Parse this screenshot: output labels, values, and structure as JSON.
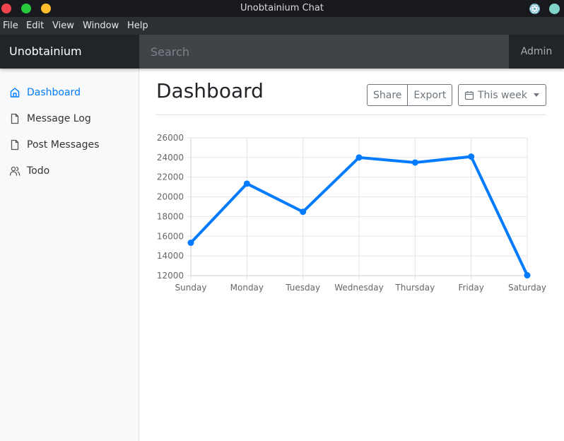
{
  "window": {
    "title": "Unobtainium Chat"
  },
  "menu": [
    "File",
    "Edit",
    "View",
    "Window",
    "Help"
  ],
  "navbar": {
    "brand": "Unobtainium",
    "search_placeholder": "Search",
    "user": "Admin"
  },
  "sidebar": {
    "items": [
      {
        "label": "Dashboard",
        "icon": "home-icon",
        "active": true
      },
      {
        "label": "Message Log",
        "icon": "file-icon",
        "active": false
      },
      {
        "label": "Post Messages",
        "icon": "file-icon",
        "active": false
      },
      {
        "label": "Todo",
        "icon": "users-icon",
        "active": false
      }
    ]
  },
  "main": {
    "title": "Dashboard",
    "share_label": "Share",
    "export_label": "Export",
    "period_label": "This week"
  },
  "colors": {
    "accent": "#007bff",
    "navbar": "#343a40"
  },
  "chart_data": {
    "type": "line",
    "categories": [
      "Sunday",
      "Monday",
      "Tuesday",
      "Wednesday",
      "Thursday",
      "Friday",
      "Saturday"
    ],
    "series": [
      {
        "values": [
          15339,
          21345,
          18483,
          24003,
          23489,
          24092,
          12034
        ]
      }
    ],
    "ylim": [
      12000,
      26000
    ],
    "yticks": [
      12000,
      14000,
      16000,
      18000,
      20000,
      22000,
      24000,
      26000
    ],
    "grid": true,
    "legend": "none"
  }
}
